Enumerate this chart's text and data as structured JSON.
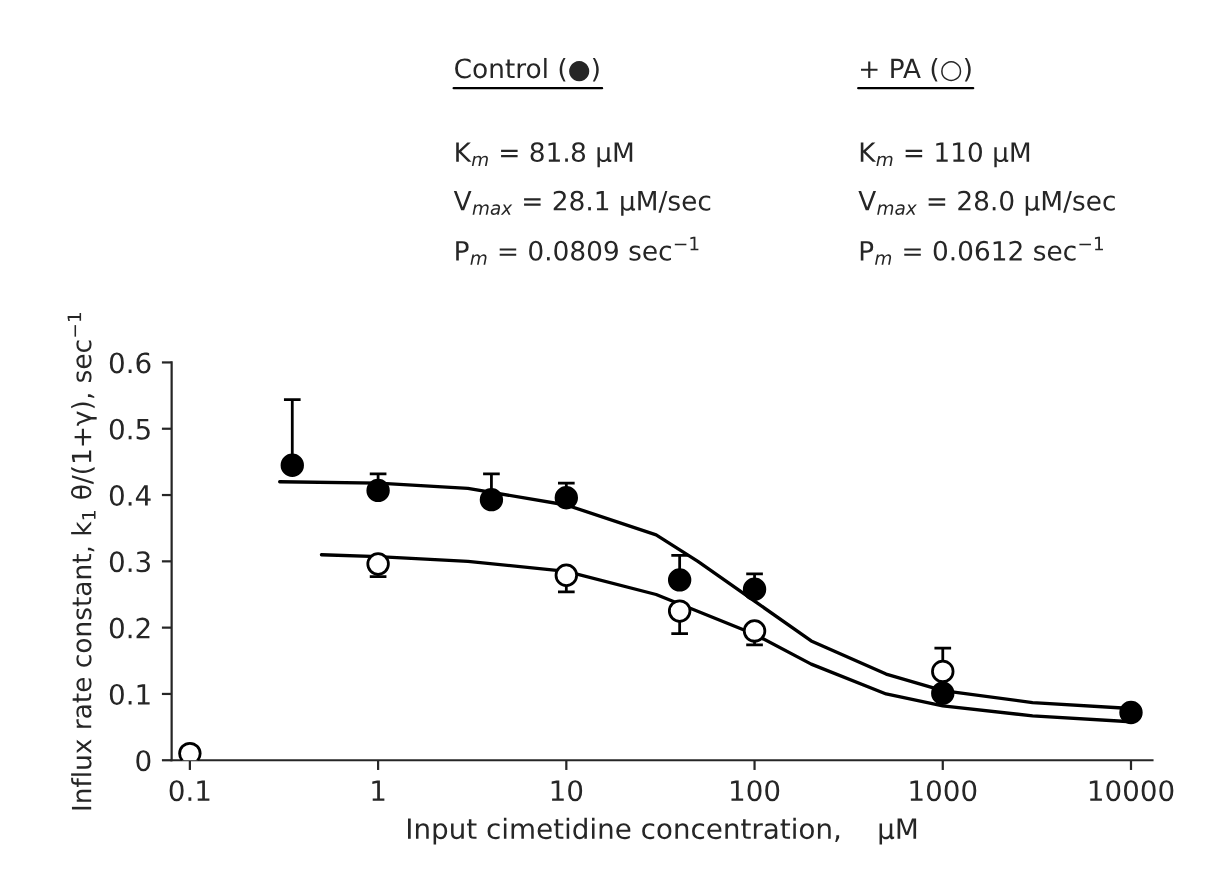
{
  "chart_data": {
    "type": "scatter",
    "xlabel": "Input cimetidine concentration,    μM",
    "ylabel": "Influx rate constant, k$_{1}$ θ/(1+γ), sec$^{−1}$",
    "annotations": [
      "Control (●)",
      "K$_{m}$ = 81.8 μM",
      "V$_{max}$ = 28.1 μM/sec",
      "P$_{m}$ = 0.0809 sec$^{−1}$",
      "+ PA (○)",
      "K$_{m}$ = 110 μM",
      "V$_{max}$ = 28.0 μM/sec",
      "P$_{m}$ = 0.0612 sec$^{−1}$"
    ],
    "log": "x",
    "xlim": [
      0.08,
      13000
    ],
    "xticks": [
      0.1,
      1,
      10,
      100,
      1000,
      10000
    ],
    "ylim": [
      0,
      0.6
    ],
    "yticks": [
      0,
      0.1,
      0.2,
      0.3,
      0.4,
      0.5,
      0.6
    ],
    "grid": false,
    "series": [
      {
        "marker": "circle",
        "color": "#000000",
        "x": [
          0.35,
          1,
          4,
          10,
          40,
          100,
          1000,
          10000
        ],
        "values": [
          0.445,
          0.407,
          0.393,
          0.396,
          0.272,
          0.258,
          0.101,
          0.072
        ],
        "errors": [
          [
            0.445,
            0.544
          ],
          [
            0.407,
            0.432
          ],
          [
            0.393,
            0.432
          ],
          [
            0.396,
            0.418
          ],
          [
            0.272,
            0.309
          ],
          [
            0.258,
            0.281
          ],
          null,
          null
        ]
      },
      {
        "marker": "circle",
        "color": "#ffffff",
        "x": [
          0.1,
          1,
          10,
          40,
          100,
          1000
        ],
        "values": [
          0.01,
          0.296,
          0.279,
          0.225,
          0.195,
          0.134
        ],
        "errors": [
          null,
          [
            0.277,
            0.296
          ],
          [
            0.254,
            0.279
          ],
          [
            0.191,
            0.225
          ],
          [
            0.174,
            0.195
          ],
          [
            0.134,
            0.169
          ]
        ]
      },
      {
        "type": "line",
        "color": "#000000",
        "x": [
          0.3,
          1,
          3,
          10,
          30,
          50,
          100,
          200,
          500,
          1000,
          3000,
          10000
        ],
        "values": [
          0.42,
          0.418,
          0.41,
          0.385,
          0.34,
          0.3,
          0.24,
          0.18,
          0.13,
          0.105,
          0.087,
          0.078
        ]
      },
      {
        "type": "line",
        "color": "#000000",
        "x": [
          0.5,
          1,
          3,
          10,
          30,
          100,
          200,
          500,
          1000,
          3000,
          10000
        ],
        "values": [
          0.31,
          0.307,
          0.3,
          0.285,
          0.25,
          0.19,
          0.145,
          0.1,
          0.082,
          0.067,
          0.058
        ]
      }
    ]
  }
}
